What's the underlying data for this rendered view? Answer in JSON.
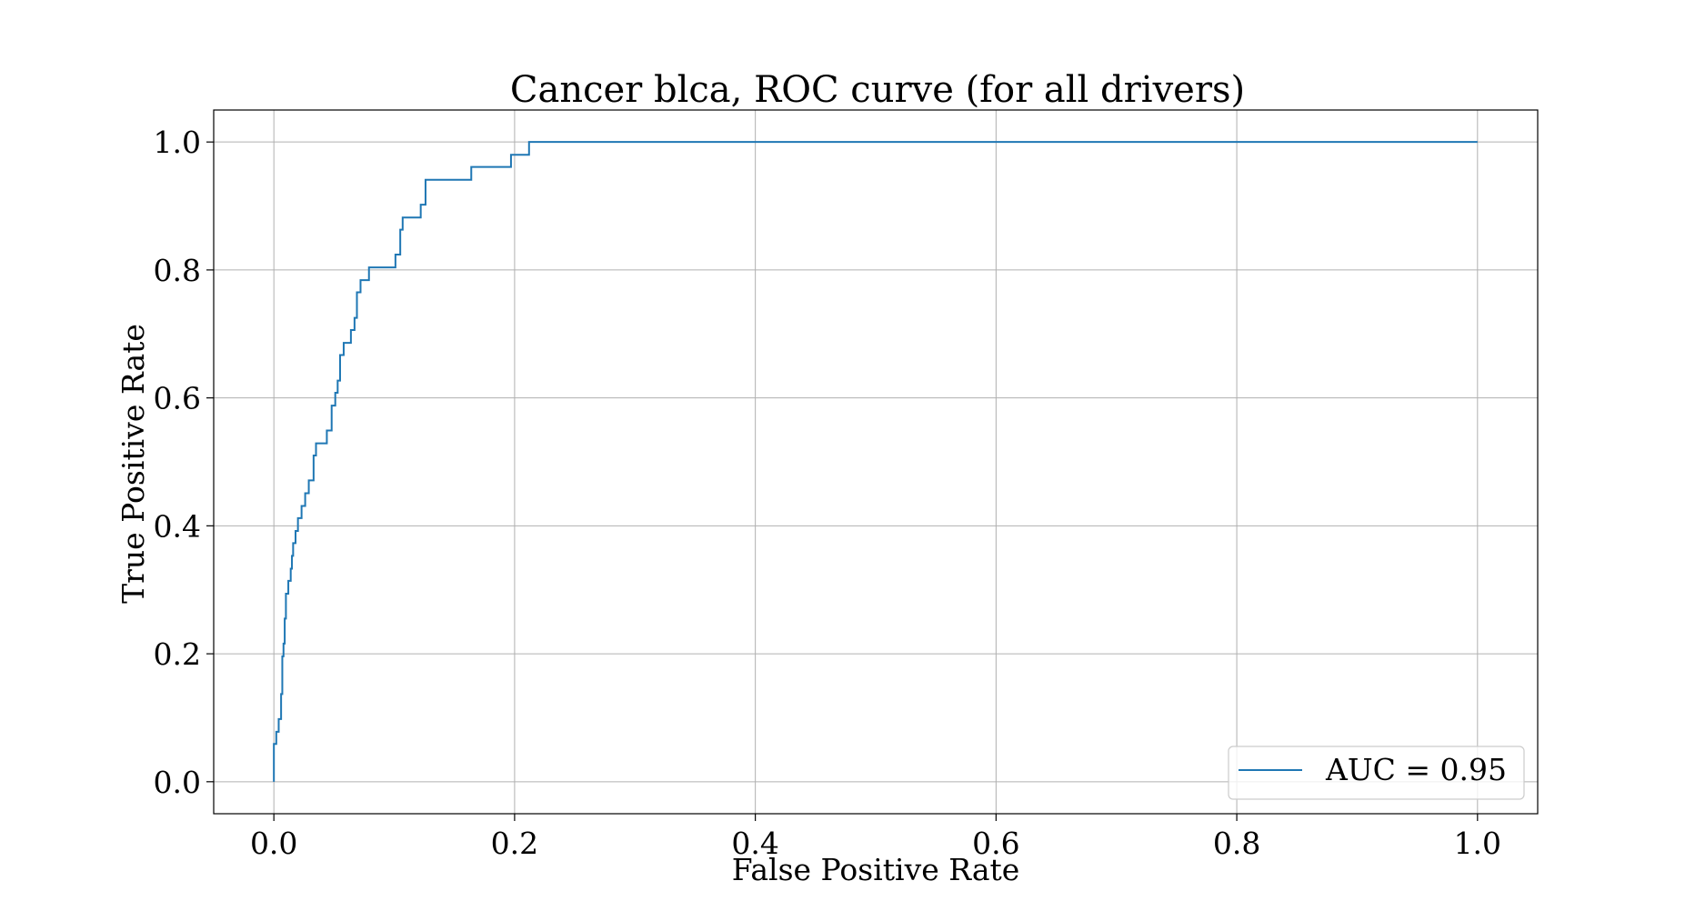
{
  "chart_data": {
    "type": "line",
    "title": "Cancer blca, ROC curve (for all drivers)",
    "xlabel": "False Positive Rate",
    "ylabel": "True Positive Rate",
    "xlim": [
      -0.05,
      1.05
    ],
    "ylim": [
      -0.05,
      1.05
    ],
    "xticks": [
      "0.0",
      "0.2",
      "0.4",
      "0.6",
      "0.8",
      "1.0"
    ],
    "yticks": [
      "0.0",
      "0.2",
      "0.4",
      "0.6",
      "0.8",
      "1.0"
    ],
    "grid": true,
    "legend_position": "lower-right",
    "series": [
      {
        "name": "AUC = 0.95",
        "color": "#1f77b4",
        "points": [
          [
            0.0,
            0.0
          ],
          [
            0.0,
            0.059
          ],
          [
            0.002,
            0.059
          ],
          [
            0.002,
            0.078
          ],
          [
            0.004,
            0.078
          ],
          [
            0.004,
            0.098
          ],
          [
            0.006,
            0.098
          ],
          [
            0.006,
            0.137
          ],
          [
            0.007,
            0.137
          ],
          [
            0.007,
            0.196
          ],
          [
            0.008,
            0.196
          ],
          [
            0.008,
            0.216
          ],
          [
            0.009,
            0.216
          ],
          [
            0.009,
            0.255
          ],
          [
            0.01,
            0.255
          ],
          [
            0.01,
            0.294
          ],
          [
            0.012,
            0.294
          ],
          [
            0.012,
            0.314
          ],
          [
            0.014,
            0.314
          ],
          [
            0.014,
            0.333
          ],
          [
            0.015,
            0.333
          ],
          [
            0.015,
            0.353
          ],
          [
            0.016,
            0.353
          ],
          [
            0.016,
            0.373
          ],
          [
            0.018,
            0.373
          ],
          [
            0.018,
            0.392
          ],
          [
            0.02,
            0.392
          ],
          [
            0.02,
            0.412
          ],
          [
            0.023,
            0.412
          ],
          [
            0.023,
            0.431
          ],
          [
            0.026,
            0.431
          ],
          [
            0.026,
            0.451
          ],
          [
            0.029,
            0.451
          ],
          [
            0.029,
            0.471
          ],
          [
            0.033,
            0.471
          ],
          [
            0.033,
            0.51
          ],
          [
            0.035,
            0.51
          ],
          [
            0.035,
            0.529
          ],
          [
            0.044,
            0.529
          ],
          [
            0.044,
            0.549
          ],
          [
            0.048,
            0.549
          ],
          [
            0.048,
            0.588
          ],
          [
            0.051,
            0.588
          ],
          [
            0.051,
            0.608
          ],
          [
            0.053,
            0.608
          ],
          [
            0.053,
            0.627
          ],
          [
            0.055,
            0.627
          ],
          [
            0.055,
            0.667
          ],
          [
            0.058,
            0.667
          ],
          [
            0.058,
            0.686
          ],
          [
            0.064,
            0.686
          ],
          [
            0.064,
            0.706
          ],
          [
            0.067,
            0.706
          ],
          [
            0.067,
            0.725
          ],
          [
            0.069,
            0.725
          ],
          [
            0.069,
            0.765
          ],
          [
            0.072,
            0.765
          ],
          [
            0.072,
            0.784
          ],
          [
            0.079,
            0.784
          ],
          [
            0.079,
            0.804
          ],
          [
            0.101,
            0.804
          ],
          [
            0.101,
            0.824
          ],
          [
            0.105,
            0.824
          ],
          [
            0.105,
            0.863
          ],
          [
            0.107,
            0.863
          ],
          [
            0.107,
            0.882
          ],
          [
            0.122,
            0.882
          ],
          [
            0.122,
            0.902
          ],
          [
            0.126,
            0.902
          ],
          [
            0.126,
            0.941
          ],
          [
            0.164,
            0.941
          ],
          [
            0.164,
            0.961
          ],
          [
            0.197,
            0.961
          ],
          [
            0.197,
            0.98
          ],
          [
            0.212,
            0.98
          ],
          [
            0.212,
            1.0
          ],
          [
            1.0,
            1.0
          ]
        ]
      }
    ]
  }
}
